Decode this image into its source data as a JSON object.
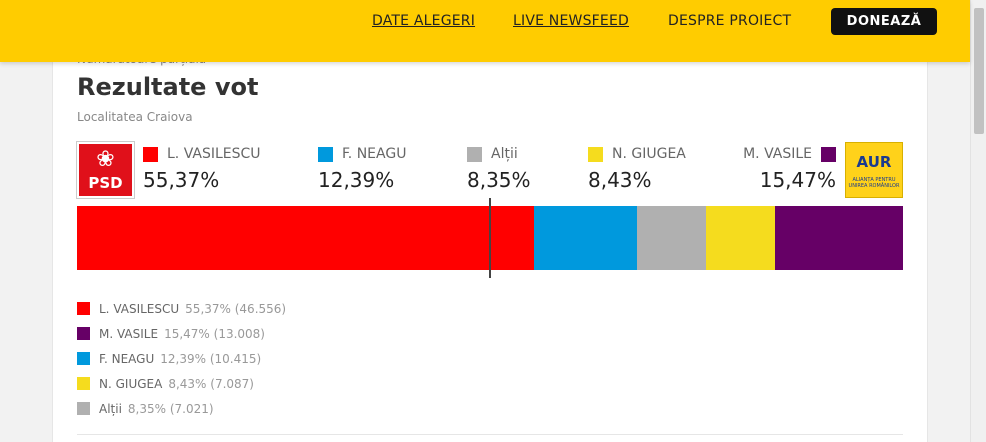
{
  "nav": {
    "links": [
      "DATE ALEGERI",
      "LIVE NEWSFEED",
      "DESPRE PROIECT"
    ],
    "donate_label": "DONEAZĂ"
  },
  "header": {
    "count_label": "Numărătoare parțială",
    "title": "Rezultate vot",
    "location": "Localitatea Craiova"
  },
  "logos": {
    "left_party": "PSD",
    "right_party": "AUR",
    "right_party_tagline": "ALIANȚA PENTRU UNIREA ROMÂNILOR"
  },
  "colors": {
    "nav_bg": "#ffcc00",
    "vasilescu": "#ff0000",
    "neagu": "#0099dd",
    "altii": "#b0b0b0",
    "giugea": "#f5dc1e",
    "vasile": "#660066"
  },
  "candidates_header": [
    {
      "name": "L. VASILESCU",
      "pct": "55,37%",
      "color": "#ff0000"
    },
    {
      "name": "F. NEAGU",
      "pct": "12,39%",
      "color": "#0099dd"
    },
    {
      "name": "Alții",
      "pct": "8,35%",
      "color": "#b0b0b0"
    },
    {
      "name": "N. GIUGEA",
      "pct": "8,43%",
      "color": "#f5dc1e"
    },
    {
      "name": "M. VASILE",
      "pct": "15,47%",
      "color": "#660066"
    }
  ],
  "bar_segments": [
    {
      "name": "L. VASILESCU",
      "share": 55.37,
      "color": "#ff0000"
    },
    {
      "name": "F. NEAGU",
      "share": 12.39,
      "color": "#0099dd"
    },
    {
      "name": "Alții",
      "share": 8.35,
      "color": "#b0b0b0"
    },
    {
      "name": "N. GIUGEA",
      "share": 8.43,
      "color": "#f5dc1e"
    },
    {
      "name": "M. VASILE",
      "share": 15.47,
      "color": "#660066"
    }
  ],
  "legend": [
    {
      "name": "L. VASILESCU",
      "value": "55,37% (46.556)",
      "color": "#ff0000"
    },
    {
      "name": "M. VASILE",
      "value": "15,47% (13.008)",
      "color": "#660066"
    },
    {
      "name": "F. NEAGU",
      "value": "12,39% (10.415)",
      "color": "#0099dd"
    },
    {
      "name": "N. GIUGEA",
      "value": "8,43% (7.087)",
      "color": "#f5dc1e"
    },
    {
      "name": "Alții",
      "value": "8,35% (7.021)",
      "color": "#b0b0b0"
    }
  ]
}
